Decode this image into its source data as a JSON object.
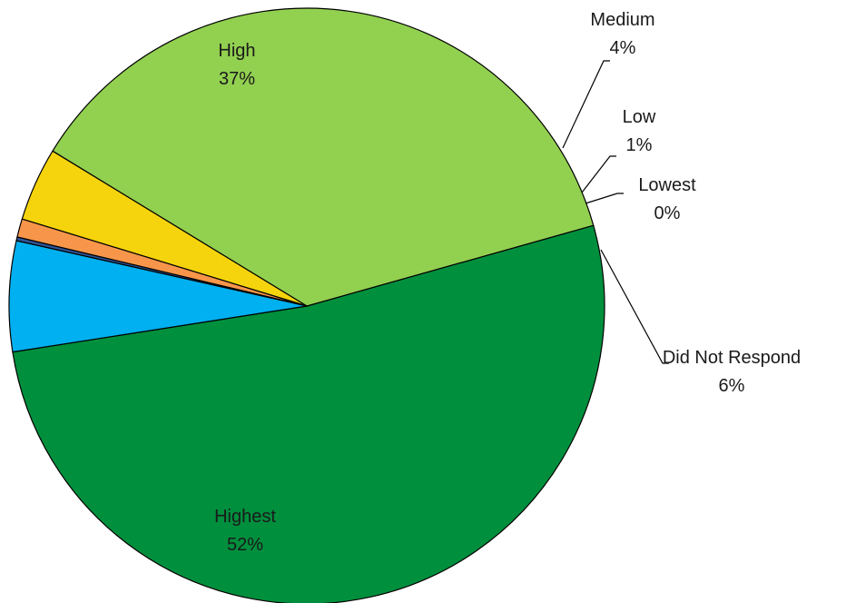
{
  "chart_data": {
    "type": "pie",
    "title": "",
    "slices": [
      {
        "label": "Highest",
        "value": 52,
        "value_label": "52%",
        "color": "#008f3d"
      },
      {
        "label": "High",
        "value": 37,
        "value_label": "37%",
        "color": "#92d050"
      },
      {
        "label": "Medium",
        "value": 4,
        "value_label": "4%",
        "color": "#f5d40d"
      },
      {
        "label": "Low",
        "value": 1,
        "value_label": "1%",
        "color": "#f7964a"
      },
      {
        "label": "Lowest",
        "value": 0.2,
        "value_label": "0%",
        "color": "#2f5597"
      },
      {
        "label": "Did Not Respond",
        "value": 6,
        "value_label": "6%",
        "color": "#00b0f0"
      }
    ],
    "legend": "none",
    "data_labels": "category and percentage"
  }
}
